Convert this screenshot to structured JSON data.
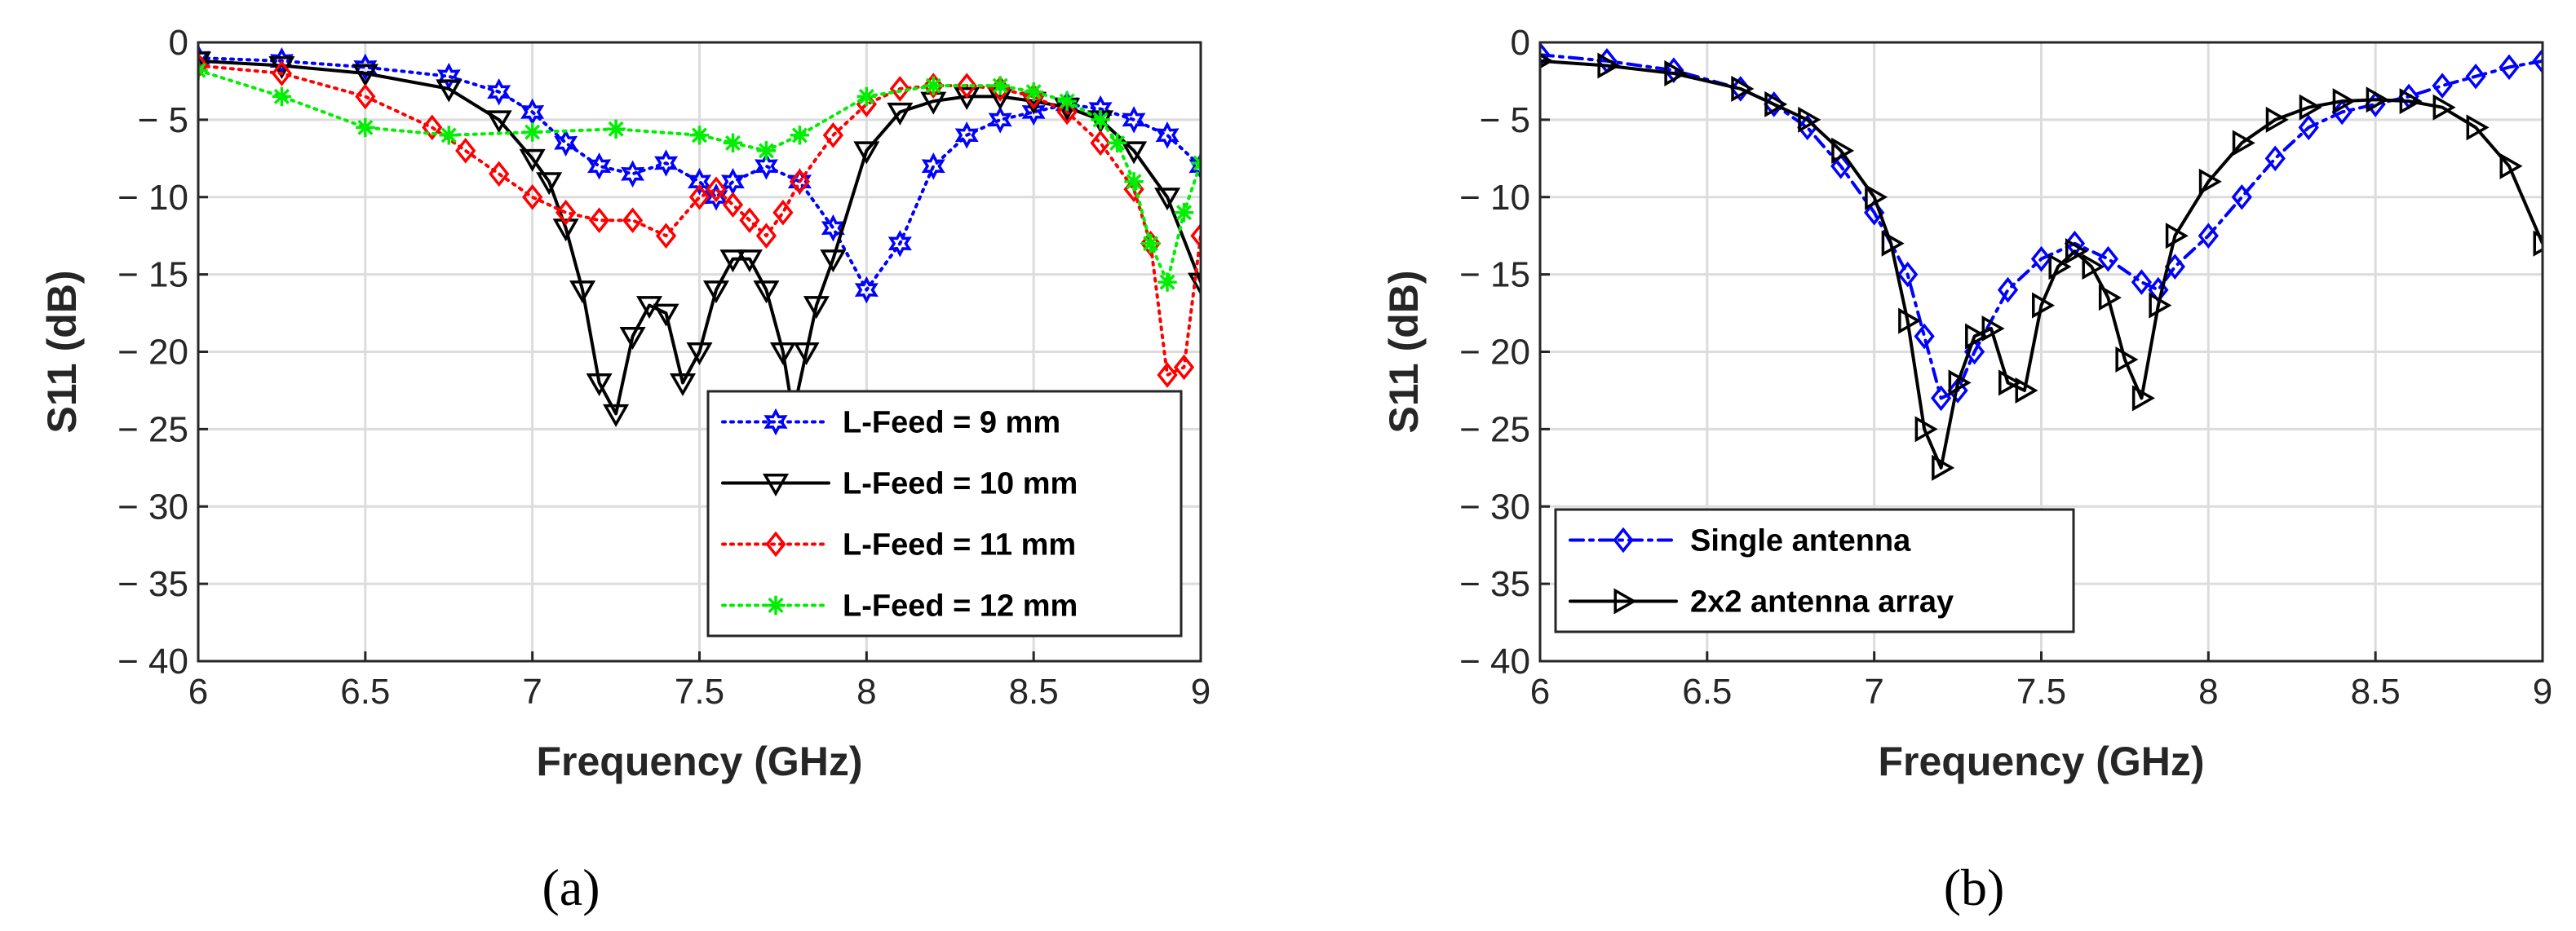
{
  "chart_data": [
    {
      "type": "line",
      "panel_label": "(a)",
      "xlabel": "Frequency (GHz)",
      "ylabel": "S11 (dB)",
      "xlim": [
        6,
        9
      ],
      "ylim": [
        -40,
        0
      ],
      "xticks": [
        6,
        6.5,
        7,
        7.5,
        8,
        8.5,
        9
      ],
      "xtick_labels": [
        "6",
        "6.5",
        "7",
        "7.5",
        "8",
        "8.5",
        "9"
      ],
      "yticks": [
        0,
        -5,
        -10,
        -15,
        -20,
        -25,
        -30,
        -35,
        -40
      ],
      "ytick_labels": [
        "0",
        "− 5",
        "− 10",
        "− 15",
        "− 20",
        "− 25",
        "− 30",
        "− 35",
        "− 40"
      ],
      "grid": true,
      "legend_position": "bottom-right",
      "series": [
        {
          "name": "L-Feed = 9 mm",
          "color": "#0000ff",
          "linestyle": "dotted",
          "marker": "hexagram",
          "x": [
            6.0,
            6.25,
            6.5,
            6.75,
            6.9,
            7.0,
            7.1,
            7.2,
            7.3,
            7.4,
            7.5,
            7.55,
            7.6,
            7.7,
            7.8,
            7.9,
            8.0,
            8.1,
            8.2,
            8.3,
            8.4,
            8.5,
            8.6,
            8.7,
            8.8,
            8.9,
            9.0
          ],
          "y": [
            -1.0,
            -1.2,
            -1.6,
            -2.2,
            -3.2,
            -4.5,
            -6.5,
            -8.0,
            -8.5,
            -7.8,
            -9.0,
            -10.0,
            -9.0,
            -8.0,
            -9.0,
            -12.0,
            -16.0,
            -13.0,
            -8.0,
            -6.0,
            -5.0,
            -4.5,
            -4.0,
            -4.3,
            -5.0,
            -6.0,
            -8.0
          ]
        },
        {
          "name": "L-Feed = 10 mm",
          "color": "#000000",
          "linestyle": "solid",
          "marker": "triangle-down",
          "x": [
            6.0,
            6.25,
            6.5,
            6.75,
            6.9,
            7.0,
            7.05,
            7.1,
            7.15,
            7.2,
            7.25,
            7.3,
            7.35,
            7.4,
            7.45,
            7.5,
            7.55,
            7.6,
            7.65,
            7.7,
            7.75,
            7.78,
            7.82,
            7.85,
            7.9,
            8.0,
            8.1,
            8.2,
            8.3,
            8.4,
            8.5,
            8.6,
            8.7,
            8.8,
            8.9,
            9.0
          ],
          "y": [
            -1.2,
            -1.5,
            -2.0,
            -3.0,
            -5.0,
            -7.5,
            -9.0,
            -12.0,
            -16.0,
            -22.0,
            -24.0,
            -19.0,
            -17.0,
            -17.5,
            -22.0,
            -20.0,
            -16.0,
            -14.0,
            -14.0,
            -16.0,
            -20.0,
            -24.0,
            -20.0,
            -17.0,
            -14.0,
            -7.0,
            -4.5,
            -3.8,
            -3.5,
            -3.5,
            -3.8,
            -4.2,
            -5.0,
            -7.0,
            -10.0,
            -15.5
          ]
        },
        {
          "name": "L-Feed = 11 mm",
          "color": "#ff0000",
          "linestyle": "dotted",
          "marker": "diamond",
          "x": [
            6.0,
            6.25,
            6.5,
            6.7,
            6.8,
            6.9,
            7.0,
            7.1,
            7.2,
            7.3,
            7.4,
            7.5,
            7.55,
            7.6,
            7.65,
            7.7,
            7.75,
            7.8,
            7.9,
            8.0,
            8.1,
            8.2,
            8.3,
            8.4,
            8.5,
            8.6,
            8.7,
            8.8,
            8.85,
            8.9,
            8.95,
            9.0
          ],
          "y": [
            -1.5,
            -2.0,
            -3.5,
            -5.5,
            -7.0,
            -8.5,
            -10.0,
            -11.0,
            -11.5,
            -11.5,
            -12.5,
            -10.0,
            -9.5,
            -10.5,
            -11.5,
            -12.5,
            -11.0,
            -9.0,
            -6.0,
            -4.0,
            -3.0,
            -2.8,
            -2.8,
            -3.0,
            -3.5,
            -4.5,
            -6.5,
            -9.5,
            -13.0,
            -21.5,
            -21.0,
            -12.5
          ]
        },
        {
          "name": "L-Feed = 12 mm",
          "color": "#00ee00",
          "linestyle": "dotted",
          "marker": "asterisk",
          "x": [
            6.0,
            6.25,
            6.5,
            6.75,
            7.0,
            7.25,
            7.5,
            7.6,
            7.7,
            7.8,
            8.0,
            8.2,
            8.4,
            8.5,
            8.6,
            8.7,
            8.75,
            8.8,
            8.85,
            8.9,
            8.95,
            9.0
          ],
          "y": [
            -1.8,
            -3.5,
            -5.5,
            -6.0,
            -5.8,
            -5.6,
            -6.0,
            -6.5,
            -7.0,
            -6.0,
            -3.5,
            -2.8,
            -2.8,
            -3.2,
            -3.8,
            -5.0,
            -6.5,
            -9.0,
            -13.0,
            -15.5,
            -11.0,
            -7.8
          ]
        }
      ]
    },
    {
      "type": "line",
      "panel_label": "(b)",
      "xlabel": "Frequency (GHz)",
      "ylabel": "S11 (dB)",
      "xlim": [
        6,
        9
      ],
      "ylim": [
        -40,
        0
      ],
      "xticks": [
        6,
        6.5,
        7,
        7.5,
        8,
        8.5,
        9
      ],
      "xtick_labels": [
        "6",
        "6.5",
        "7",
        "7.5",
        "8",
        "8.5",
        "9"
      ],
      "yticks": [
        0,
        -5,
        -10,
        -15,
        -20,
        -25,
        -30,
        -35,
        -40
      ],
      "ytick_labels": [
        "0",
        "− 5",
        "− 10",
        "− 15",
        "− 20",
        "− 25",
        "− 30",
        "− 35",
        "− 40"
      ],
      "grid": true,
      "legend_position": "bottom-left",
      "series": [
        {
          "name": "Single antenna",
          "color": "#0000ff",
          "linestyle": "dashdot",
          "marker": "diamond",
          "x": [
            6.0,
            6.2,
            6.4,
            6.6,
            6.7,
            6.8,
            6.9,
            7.0,
            7.1,
            7.15,
            7.2,
            7.25,
            7.3,
            7.4,
            7.5,
            7.6,
            7.7,
            7.8,
            7.85,
            7.9,
            8.0,
            8.1,
            8.2,
            8.3,
            8.4,
            8.5,
            8.6,
            8.7,
            8.8,
            8.9,
            9.0
          ],
          "y": [
            -0.8,
            -1.2,
            -1.8,
            -3.0,
            -4.0,
            -5.5,
            -8.0,
            -11.0,
            -15.0,
            -19.0,
            -23.0,
            -22.5,
            -20.0,
            -16.0,
            -14.0,
            -13.0,
            -14.0,
            -15.5,
            -16.0,
            -14.5,
            -12.5,
            -10.0,
            -7.5,
            -5.5,
            -4.5,
            -4.0,
            -3.5,
            -2.8,
            -2.2,
            -1.6,
            -1.2
          ]
        },
        {
          "name": "2x2 antenna array",
          "color": "#000000",
          "linestyle": "solid",
          "marker": "triangle-right",
          "x": [
            6.0,
            6.2,
            6.4,
            6.6,
            6.7,
            6.8,
            6.9,
            7.0,
            7.05,
            7.1,
            7.15,
            7.2,
            7.25,
            7.3,
            7.35,
            7.4,
            7.45,
            7.5,
            7.55,
            7.6,
            7.65,
            7.7,
            7.75,
            7.8,
            7.85,
            7.9,
            8.0,
            8.1,
            8.2,
            8.3,
            8.4,
            8.5,
            8.6,
            8.7,
            8.8,
            8.9,
            9.0
          ],
          "y": [
            -1.2,
            -1.5,
            -2.0,
            -3.0,
            -4.0,
            -5.0,
            -7.0,
            -10.0,
            -13.0,
            -18.0,
            -25.0,
            -27.5,
            -22.0,
            -19.0,
            -18.5,
            -22.0,
            -22.5,
            -17.0,
            -14.5,
            -13.5,
            -14.5,
            -16.5,
            -20.5,
            -23.0,
            -17.0,
            -12.5,
            -9.0,
            -6.5,
            -5.0,
            -4.2,
            -3.8,
            -3.7,
            -3.8,
            -4.2,
            -5.5,
            -8.0,
            -13.0
          ]
        }
      ]
    }
  ]
}
